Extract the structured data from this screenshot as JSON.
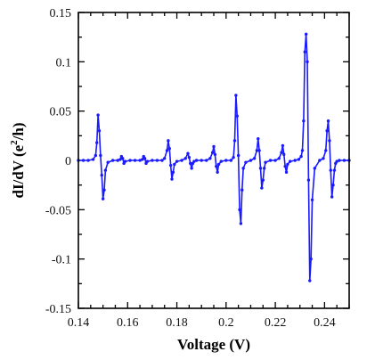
{
  "chart_data": {
    "type": "line",
    "title": "",
    "xlabel": "Voltage (V)",
    "ylabel_parts": [
      "dI/dV (e",
      "2",
      "/h)"
    ],
    "xlim": [
      0.14,
      0.25
    ],
    "ylim": [
      -0.15,
      0.15
    ],
    "x_ticks": [
      0.14,
      0.16,
      0.18,
      0.2,
      0.22,
      0.24
    ],
    "x_tick_labels": [
      "0.14",
      "0.16",
      "0.18",
      "0.2",
      "0.22",
      "0.24"
    ],
    "y_ticks": [
      -0.15,
      -0.1,
      -0.05,
      0,
      0.05,
      0.1,
      0.15
    ],
    "y_tick_labels": [
      "-0.15",
      "-0.1",
      "-0.05",
      "0",
      "0.05",
      "0.1",
      "0.15"
    ],
    "grid": false,
    "line_color": "#1a1aff",
    "series": [
      {
        "x": [
          0.14,
          0.142,
          0.144,
          0.146,
          0.147,
          0.1475,
          0.148,
          0.1485,
          0.149,
          0.1495,
          0.15,
          0.1505,
          0.151,
          0.152,
          0.154,
          0.156,
          0.157,
          0.1575,
          0.158,
          0.1585,
          0.159,
          0.161,
          0.163,
          0.165,
          0.166,
          0.1665,
          0.167,
          0.1675,
          0.168,
          0.17,
          0.172,
          0.174,
          0.175,
          0.176,
          0.1765,
          0.177,
          0.1775,
          0.178,
          0.1785,
          0.179,
          0.18,
          0.182,
          0.1835,
          0.1845,
          0.185,
          0.1855,
          0.186,
          0.1865,
          0.187,
          0.188,
          0.19,
          0.192,
          0.1935,
          0.1945,
          0.195,
          0.1955,
          0.196,
          0.1965,
          0.197,
          0.198,
          0.2,
          0.202,
          0.203,
          0.2035,
          0.204,
          0.2045,
          0.205,
          0.2055,
          0.206,
          0.2065,
          0.207,
          0.208,
          0.21,
          0.2115,
          0.2125,
          0.213,
          0.2135,
          0.214,
          0.2145,
          0.215,
          0.2155,
          0.216,
          0.218,
          0.22,
          0.2215,
          0.2225,
          0.223,
          0.2235,
          0.224,
          0.2245,
          0.225,
          0.226,
          0.228,
          0.2295,
          0.2305,
          0.231,
          0.2315,
          0.232,
          0.2325,
          0.233,
          0.2335,
          0.234,
          0.2345,
          0.235,
          0.236,
          0.238,
          0.2395,
          0.2405,
          0.241,
          0.2415,
          0.242,
          0.2425,
          0.243,
          0.2435,
          0.244,
          0.2445,
          0.245,
          0.246,
          0.248,
          0.25
        ],
        "y": [
          0.0,
          0.0,
          0.0,
          0.001,
          0.005,
          0.018,
          0.046,
          0.03,
          0.005,
          -0.015,
          -0.039,
          -0.03,
          -0.01,
          -0.002,
          0.0,
          0.0,
          0.001,
          0.004,
          0.002,
          -0.003,
          -0.001,
          0.0,
          0.0,
          0.0,
          0.001,
          0.004,
          0.002,
          -0.003,
          -0.001,
          0.0,
          0.0,
          0.0,
          0.002,
          0.01,
          0.02,
          0.012,
          -0.005,
          -0.019,
          -0.012,
          -0.004,
          -0.001,
          0.0,
          0.002,
          0.007,
          0.003,
          -0.003,
          -0.008,
          -0.003,
          -0.001,
          0.0,
          0.0,
          0.0,
          0.002,
          0.008,
          0.014,
          0.006,
          -0.006,
          -0.012,
          -0.004,
          -0.001,
          0.0,
          0.0,
          0.003,
          0.02,
          0.066,
          0.045,
          0.005,
          -0.05,
          -0.064,
          -0.03,
          -0.008,
          -0.002,
          0.0,
          0.002,
          0.01,
          0.022,
          0.01,
          -0.008,
          -0.028,
          -0.02,
          -0.008,
          -0.002,
          0.0,
          0.0,
          0.002,
          0.008,
          0.015,
          0.006,
          -0.006,
          -0.012,
          -0.004,
          -0.001,
          0.0,
          0.001,
          0.004,
          0.01,
          0.04,
          0.11,
          0.128,
          0.1,
          -0.02,
          -0.122,
          -0.1,
          -0.04,
          -0.008,
          0.0,
          0.002,
          0.01,
          0.03,
          0.04,
          0.02,
          -0.01,
          -0.037,
          -0.025,
          -0.01,
          -0.003,
          -0.001,
          0.0,
          0.0,
          0.0
        ]
      }
    ]
  }
}
